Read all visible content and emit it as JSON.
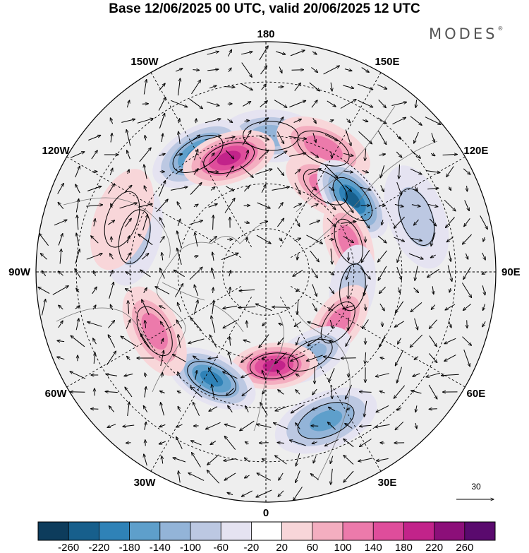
{
  "title": "Base 12/06/2025 00 UTC, valid 20/06/2025 12 UTC",
  "brand": "MODES",
  "brand_mark": "®",
  "longitude_labels": [
    "180",
    "150E",
    "120E",
    "90E",
    "60E",
    "30E",
    "0",
    "30W",
    "60W",
    "90W",
    "120W",
    "150W"
  ],
  "colorbar": {
    "ticks": [
      "-260",
      "-220",
      "-180",
      "-140",
      "-100",
      "-60",
      "-20",
      "20",
      "60",
      "100",
      "140",
      "180",
      "220",
      "260"
    ],
    "colors": [
      "#0d3c5c",
      "#175f8c",
      "#2f82b7",
      "#5e9fcb",
      "#93b4d8",
      "#bcc8e2",
      "#e5e3f1",
      "#ffffff",
      "#f8d6d9",
      "#f4aec0",
      "#ec7aab",
      "#df4d9b",
      "#c2238a",
      "#8c0f79",
      "#5a0a6e"
    ]
  },
  "vector_reference": {
    "value": "30"
  },
  "map": {
    "projection": "north-polar-stereographic",
    "anomaly_centers": [
      {
        "lon": 178,
        "lat": 45,
        "sign": "negative",
        "value": -120
      },
      {
        "lon": 155,
        "lat": 45,
        "sign": "positive",
        "value": 130
      },
      {
        "lon": 145,
        "lat": 55,
        "sign": "positive",
        "value": 120
      },
      {
        "lon": 130,
        "lat": 52,
        "sign": "negative",
        "value": -240
      },
      {
        "lon": 110,
        "lat": 60,
        "sign": "positive",
        "value": 110
      },
      {
        "lon": 110,
        "lat": 38,
        "sign": "negative",
        "value": -80
      },
      {
        "lon": 80,
        "lat": 60,
        "sign": "negative",
        "value": -90
      },
      {
        "lon": 55,
        "lat": 60,
        "sign": "positive",
        "value": 110
      },
      {
        "lon": 28,
        "lat": 58,
        "sign": "negative",
        "value": -130
      },
      {
        "lon": 22,
        "lat": 38,
        "sign": "negative",
        "value": -150
      },
      {
        "lon": 5,
        "lat": 58,
        "sign": "positive",
        "value": 180
      },
      {
        "lon": 333,
        "lat": 50,
        "sign": "negative",
        "value": -190
      },
      {
        "lon": 298,
        "lat": 48,
        "sign": "positive",
        "value": 120
      },
      {
        "lon": 210,
        "lat": 45,
        "sign": "negative",
        "value": -190
      },
      {
        "lon": 198,
        "lat": 50,
        "sign": "positive",
        "value": 200
      },
      {
        "lon": 255,
        "lat": 45,
        "sign": "negative",
        "value": -70
      },
      {
        "lon": 250,
        "lat": 40,
        "sign": "positive",
        "value": 50
      }
    ]
  }
}
